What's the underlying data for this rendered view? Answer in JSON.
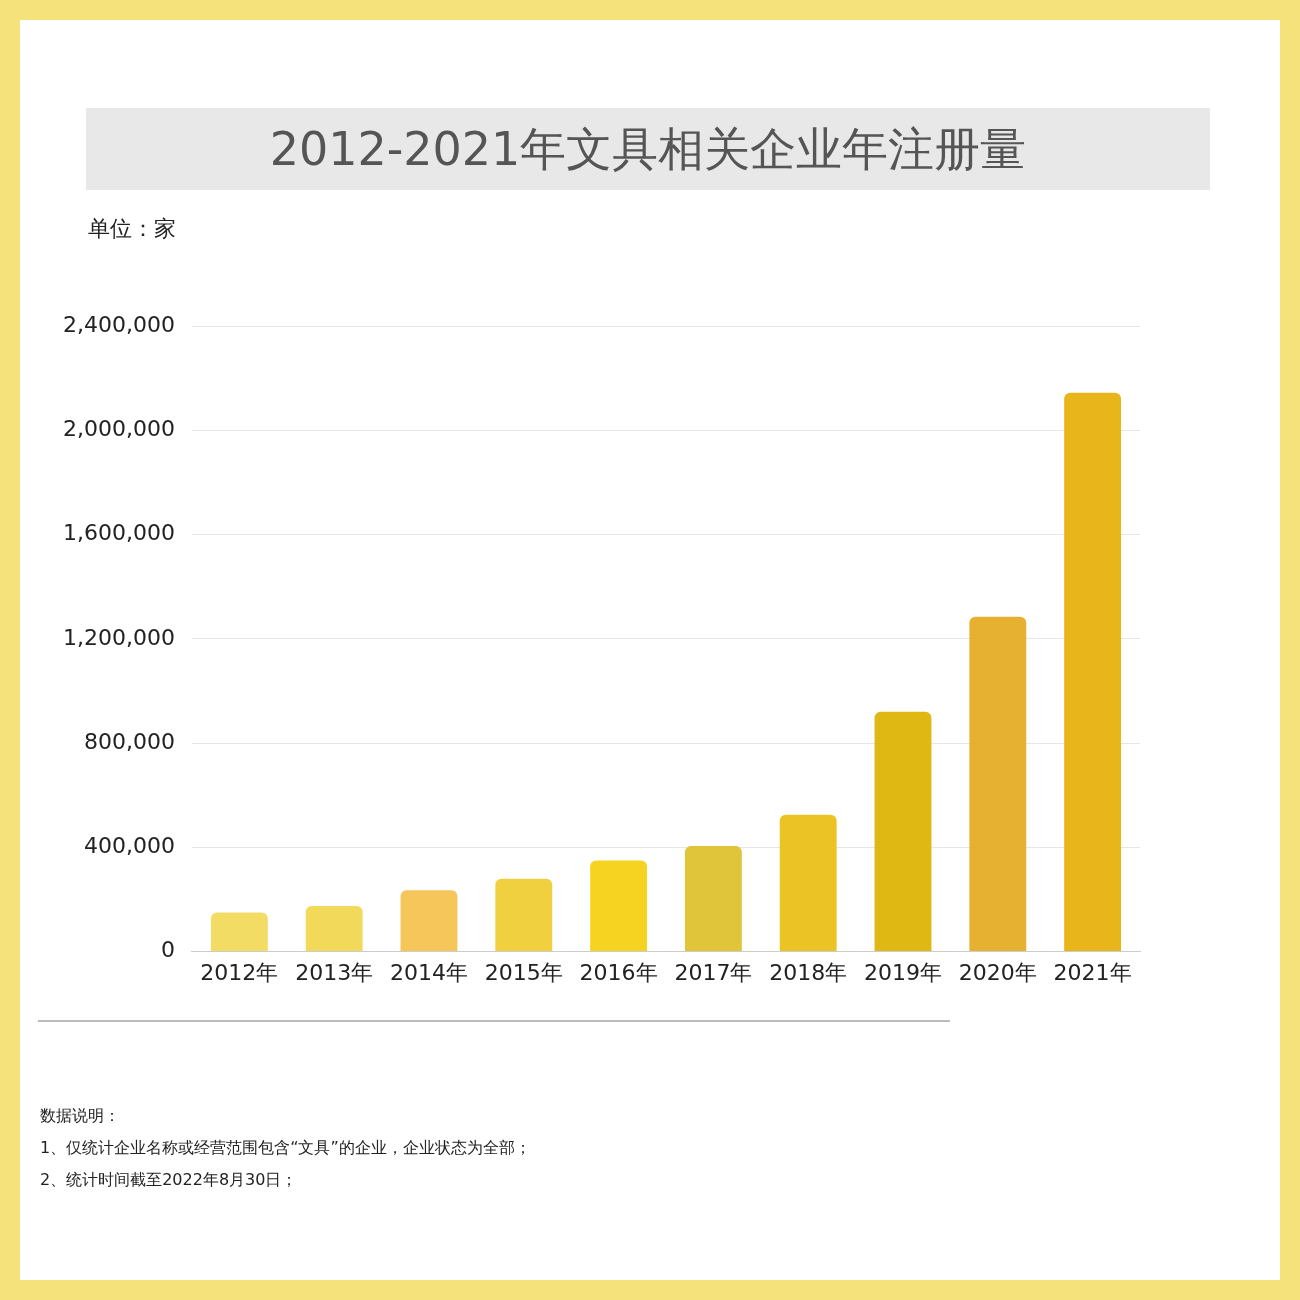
{
  "chart_data": {
    "type": "bar",
    "title": "2012-2021年文具相关企业年注册量",
    "ylabel": "单位：家",
    "categories": [
      "2012年",
      "2013年",
      "2014年",
      "2015年",
      "2016年",
      "2017年",
      "2018年",
      "2019年",
      "2020年",
      "2021年"
    ],
    "values": [
      150000,
      175000,
      235000,
      280000,
      350000,
      405000,
      525000,
      920000,
      1285000,
      2145000
    ],
    "colors": [
      "#f3dc64",
      "#f2d95a",
      "#f7c65a",
      "#f1d040",
      "#f5d320",
      "#e0c53a",
      "#ebc324",
      "#e0b814",
      "#e6b030",
      "#e8b61a"
    ],
    "ylim": [
      0,
      2400000
    ],
    "yticks": [
      {
        "value": 0,
        "label": "0"
      },
      {
        "value": 400000,
        "label": "400,000"
      },
      {
        "value": 800000,
        "label": "800,000"
      },
      {
        "value": 1200000,
        "label": "1,200,000"
      },
      {
        "value": 1600000,
        "label": "1,600,000"
      },
      {
        "value": 2000000,
        "label": "2,000,000"
      },
      {
        "value": 2400000,
        "label": "2,400,000"
      }
    ],
    "grid": "y",
    "legend": false,
    "annotations": [
      "数据说明：",
      "1、仅统计企业名称或经营范围包含“文具”的企业，企业状态为全部；",
      "2、统计时间截至2022年8月30日；"
    ]
  }
}
